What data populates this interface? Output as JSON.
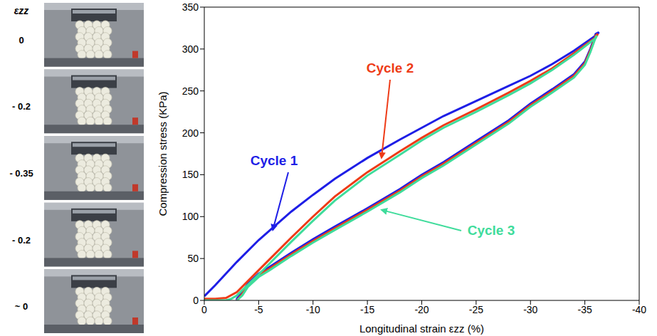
{
  "strain_column": {
    "title": "εzz",
    "labels": [
      "0",
      "- 0.2",
      "- 0.35",
      "- 0.2",
      "~ 0"
    ]
  },
  "chart_data": {
    "type": "line",
    "x_label": "Longitudinal strain εzz (%)",
    "y_label": "Compression stress (KPa)",
    "xlim": [
      0,
      -40
    ],
    "xticks": [
      0,
      -5,
      -10,
      -15,
      -20,
      -25,
      -30,
      -35,
      -40
    ],
    "ylim": [
      0,
      350
    ],
    "yticks": [
      0,
      50,
      100,
      150,
      200,
      250,
      300,
      350
    ],
    "grid": false,
    "marker": "none",
    "series": [
      {
        "name": "Cycle 1",
        "color": "#1e1ee6",
        "x": [
          0,
          -1,
          -2,
          -3,
          -5,
          -8,
          -10,
          -12,
          -15,
          -18,
          -20,
          -22,
          -25,
          -28,
          -30,
          -32,
          -34,
          -36,
          -36.3,
          -36,
          -35.5,
          -35,
          -34,
          -32,
          -30,
          -28,
          -25,
          -22,
          -20,
          -18,
          -15,
          -12,
          -10,
          -8,
          -6,
          -5,
          -4,
          -3.5,
          -3,
          -3
        ],
        "values": [
          5,
          18,
          32,
          46,
          72,
          106,
          126,
          145,
          170,
          192,
          206,
          220,
          238,
          256,
          268,
          282,
          298,
          316,
          320,
          318,
          300,
          285,
          270,
          252,
          235,
          215,
          190,
          165,
          150,
          133,
          110,
          88,
          73,
          57,
          40,
          32,
          20,
          10,
          2,
          0
        ]
      },
      {
        "name": "Cycle 2",
        "color": "#ee3b17",
        "x": [
          0,
          -1,
          -2,
          -3,
          -5,
          -8,
          -10,
          -12,
          -15,
          -18,
          -20,
          -22,
          -25,
          -28,
          -30,
          -32,
          -34,
          -36,
          -36.2,
          -36,
          -35.5,
          -35,
          -34,
          -32,
          -30,
          -28,
          -25,
          -22,
          -20,
          -18,
          -15,
          -12,
          -10,
          -8,
          -6,
          -5,
          -4,
          -3.5,
          -3
        ],
        "values": [
          2,
          2,
          3,
          10,
          36,
          75,
          100,
          124,
          153,
          178,
          194,
          209,
          228,
          248,
          262,
          277,
          295,
          314,
          318,
          316,
          298,
          283,
          268,
          250,
          233,
          213,
          188,
          163,
          148,
          131,
          108,
          86,
          71,
          55,
          38,
          30,
          18,
          8,
          0
        ]
      },
      {
        "name": "Cycle 3",
        "color": "#3fdc9b",
        "x": [
          0,
          -1,
          -2,
          -2.5,
          -3,
          -5,
          -8,
          -10,
          -12,
          -15,
          -18,
          -20,
          -22,
          -25,
          -28,
          -30,
          -32,
          -34,
          -36,
          -36.1,
          -36,
          -35.5,
          -35,
          -34,
          -32,
          -30,
          -28,
          -25,
          -22,
          -20,
          -18,
          -15,
          -12,
          -10,
          -8,
          -6,
          -5,
          -4,
          -3.5,
          -3
        ],
        "values": [
          0,
          0,
          0,
          2,
          6,
          31,
          70,
          95,
          119,
          149,
          174,
          191,
          206,
          225,
          245,
          259,
          275,
          293,
          313,
          316,
          314,
          296,
          281,
          266,
          248,
          231,
          211,
          186,
          161,
          146,
          129,
          106,
          84,
          69,
          53,
          36,
          28,
          16,
          6,
          0
        ]
      }
    ]
  }
}
